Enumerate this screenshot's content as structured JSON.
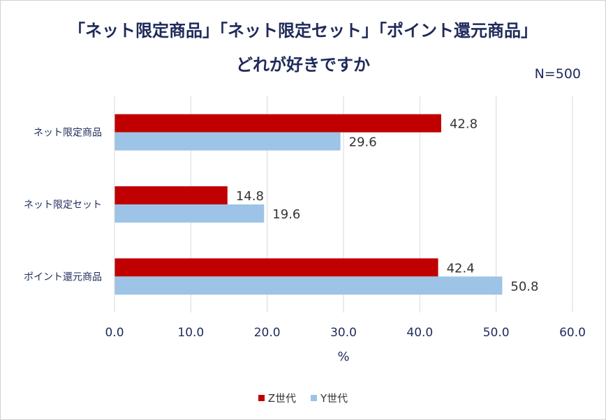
{
  "title_line1": "「ネット限定商品」「ネット限定セット」「ポイント還元商品」",
  "title_line2": "どれが好きですか",
  "sample_label": "N=500",
  "chart_data": {
    "type": "bar",
    "orientation": "horizontal",
    "categories": [
      "ネット限定商品",
      "ネット限定セット",
      "ポイント還元商品"
    ],
    "series": [
      {
        "name": "Z世代",
        "values": [
          42.8,
          14.8,
          42.4
        ],
        "color": "#c00000"
      },
      {
        "name": "Y世代",
        "values": [
          29.6,
          19.6,
          50.8
        ],
        "color": "#9dc3e6"
      }
    ],
    "xlim": [
      0,
      60
    ],
    "xticks": [
      0,
      10,
      20,
      30,
      40,
      50,
      60
    ],
    "tick_labels": [
      "0.0",
      "10.0",
      "20.0",
      "30.0",
      "40.0",
      "50.0",
      "60.0"
    ],
    "xlabel": "%",
    "grid": true,
    "legend_position": "bottom"
  }
}
